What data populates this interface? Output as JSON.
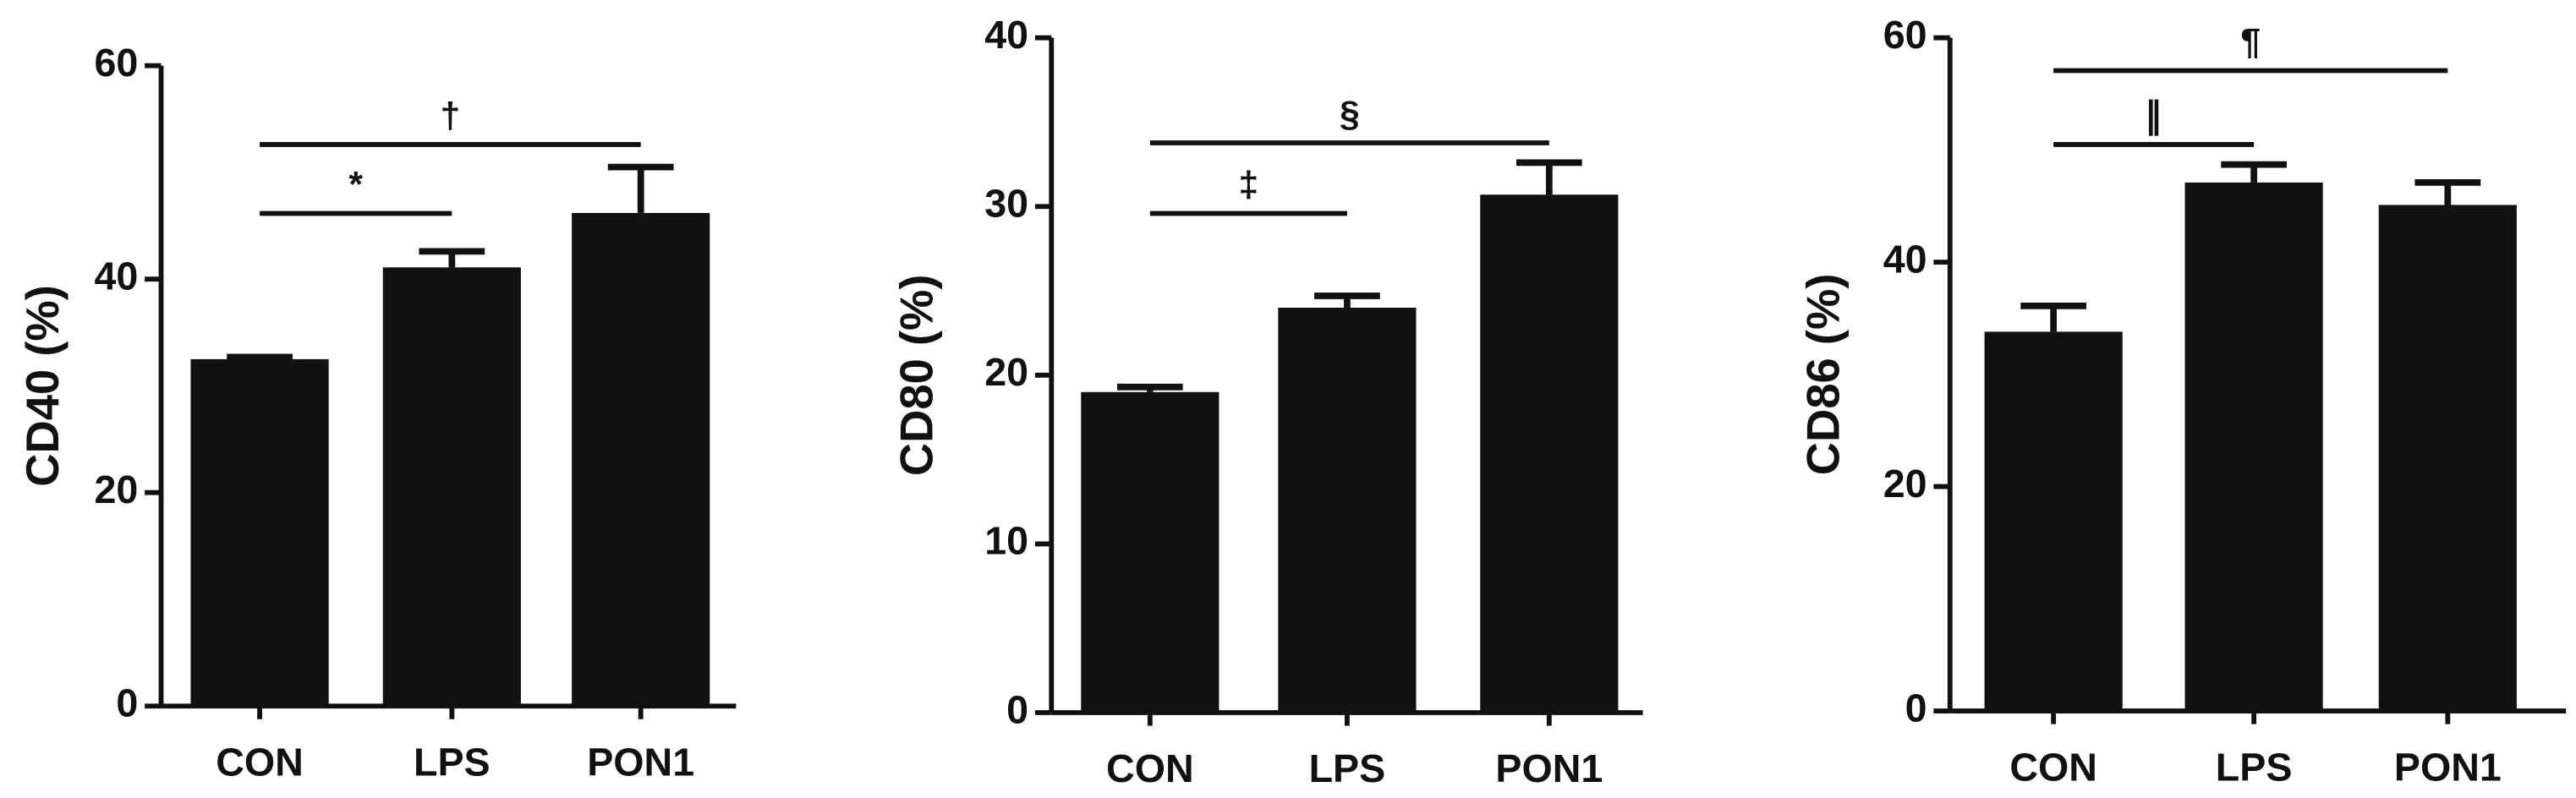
{
  "chart_data": [
    {
      "type": "bar",
      "y_label": "CD40 (%)",
      "categories": [
        "CON",
        "LPS",
        "PON1"
      ],
      "values": [
        32.5,
        41.1,
        46.2
      ],
      "errors": [
        0.2,
        1.5,
        4.3
      ],
      "color": "#111111",
      "ylim": [
        0,
        60
      ],
      "yticks": [
        0,
        20,
        40,
        60
      ],
      "annotations": [
        {
          "text": "*",
          "between": [
            "CON",
            "LPS"
          ]
        },
        {
          "text": "†",
          "between": [
            "CON",
            "PON1"
          ]
        }
      ]
    },
    {
      "type": "bar",
      "y_label": "CD80 (%)",
      "categories": [
        "CON",
        "LPS",
        "PON1"
      ],
      "values": [
        19.0,
        24.0,
        30.7
      ],
      "errors": [
        0.3,
        0.7,
        1.9
      ],
      "color": "#111111",
      "ylim": [
        0,
        40
      ],
      "yticks": [
        0,
        10,
        20,
        30,
        40
      ],
      "annotations": [
        {
          "text": "‡",
          "between": [
            "CON",
            "LPS"
          ]
        },
        {
          "text": "§",
          "between": [
            "CON",
            "PON1"
          ]
        }
      ]
    },
    {
      "type": "bar",
      "y_label": "CD86 (%)",
      "categories": [
        "CON",
        "LPS",
        "PON1"
      ],
      "values": [
        33.8,
        47.1,
        45.1
      ],
      "errors": [
        2.3,
        1.6,
        2.0
      ],
      "color": "#111111",
      "ylim": [
        0,
        60
      ],
      "yticks": [
        0,
        20,
        40,
        60
      ],
      "annotations": [
        {
          "text": "∥",
          "between": [
            "CON",
            "LPS"
          ]
        },
        {
          "text": "¶",
          "between": [
            "CON",
            "PON1"
          ]
        }
      ]
    }
  ]
}
